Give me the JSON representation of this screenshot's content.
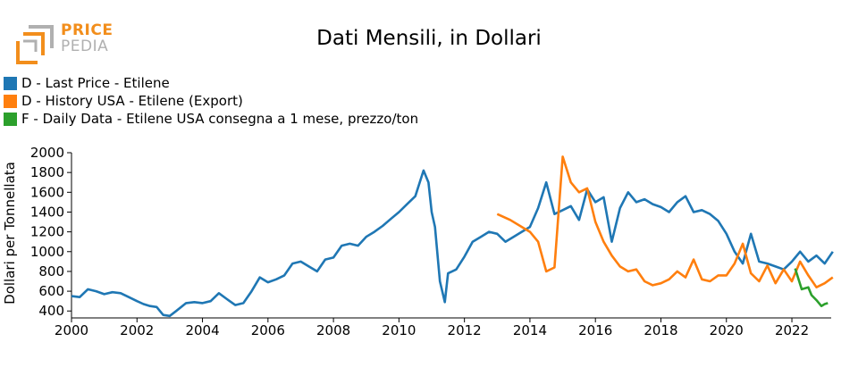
{
  "logo": {
    "line1": "PRICE",
    "line2": "PEDIA",
    "icon": "pricepedia-logo-icon"
  },
  "chart_data": {
    "type": "line",
    "title": "Dati Mensili, in Dollari",
    "xlabel": "",
    "ylabel": "Dollari per Tonnellata",
    "xlim": [
      2000,
      2023.2
    ],
    "ylim": [
      330,
      2000
    ],
    "x_ticks": [
      "2000",
      "2002",
      "2004",
      "2006",
      "2008",
      "2010",
      "2012",
      "2014",
      "2016",
      "2018",
      "2020",
      "2022"
    ],
    "y_ticks": [
      "400",
      "600",
      "800",
      "1000",
      "1200",
      "1400",
      "1600",
      "1800",
      "2000"
    ],
    "grid": false,
    "legend_position": "top-left",
    "series": [
      {
        "name": "D - Last Price - Etilene",
        "color": "#1f77b4",
        "points": [
          [
            2000.0,
            550
          ],
          [
            2000.25,
            540
          ],
          [
            2000.5,
            620
          ],
          [
            2000.75,
            600
          ],
          [
            2001.0,
            570
          ],
          [
            2001.25,
            590
          ],
          [
            2001.5,
            580
          ],
          [
            2001.75,
            540
          ],
          [
            2002.0,
            500
          ],
          [
            2002.2,
            470
          ],
          [
            2002.4,
            450
          ],
          [
            2002.6,
            440
          ],
          [
            2002.8,
            360
          ],
          [
            2003.0,
            350
          ],
          [
            2003.2,
            400
          ],
          [
            2003.5,
            480
          ],
          [
            2003.75,
            490
          ],
          [
            2004.0,
            480
          ],
          [
            2004.25,
            500
          ],
          [
            2004.5,
            580
          ],
          [
            2004.75,
            520
          ],
          [
            2005.0,
            460
          ],
          [
            2005.25,
            480
          ],
          [
            2005.5,
            600
          ],
          [
            2005.75,
            740
          ],
          [
            2006.0,
            690
          ],
          [
            2006.25,
            720
          ],
          [
            2006.5,
            760
          ],
          [
            2006.75,
            880
          ],
          [
            2007.0,
            900
          ],
          [
            2007.25,
            850
          ],
          [
            2007.5,
            800
          ],
          [
            2007.75,
            920
          ],
          [
            2008.0,
            940
          ],
          [
            2008.25,
            1060
          ],
          [
            2008.5,
            1080
          ],
          [
            2008.75,
            1060
          ],
          [
            2009.0,
            1150
          ],
          [
            2009.25,
            1200
          ],
          [
            2009.5,
            1260
          ],
          [
            2009.75,
            1330
          ],
          [
            2010.0,
            1400
          ],
          [
            2010.25,
            1480
          ],
          [
            2010.5,
            1560
          ],
          [
            2010.75,
            1820
          ],
          [
            2010.9,
            1700
          ],
          [
            2011.0,
            1400
          ],
          [
            2011.1,
            1250
          ],
          [
            2011.25,
            700
          ],
          [
            2011.4,
            490
          ],
          [
            2011.5,
            780
          ],
          [
            2011.75,
            820
          ],
          [
            2012.0,
            950
          ],
          [
            2012.25,
            1100
          ],
          [
            2012.5,
            1150
          ],
          [
            2012.75,
            1200
          ],
          [
            2013.0,
            1180
          ],
          [
            2013.25,
            1100
          ],
          [
            2013.5,
            1150
          ],
          [
            2013.75,
            1200
          ],
          [
            2014.0,
            1250
          ],
          [
            2014.25,
            1440
          ],
          [
            2014.5,
            1700
          ],
          [
            2014.75,
            1380
          ],
          [
            2015.0,
            1420
          ],
          [
            2015.25,
            1460
          ],
          [
            2015.5,
            1320
          ],
          [
            2015.75,
            1630
          ],
          [
            2016.0,
            1500
          ],
          [
            2016.25,
            1550
          ],
          [
            2016.5,
            1100
          ],
          [
            2016.75,
            1440
          ],
          [
            2017.0,
            1600
          ],
          [
            2017.25,
            1500
          ],
          [
            2017.5,
            1530
          ],
          [
            2017.75,
            1480
          ],
          [
            2018.0,
            1450
          ],
          [
            2018.25,
            1400
          ],
          [
            2018.5,
            1500
          ],
          [
            2018.75,
            1560
          ],
          [
            2019.0,
            1400
          ],
          [
            2019.25,
            1420
          ],
          [
            2019.5,
            1380
          ],
          [
            2019.75,
            1310
          ],
          [
            2020.0,
            1180
          ],
          [
            2020.25,
            1000
          ],
          [
            2020.5,
            880
          ],
          [
            2020.75,
            1180
          ],
          [
            2021.0,
            900
          ],
          [
            2021.25,
            880
          ],
          [
            2021.5,
            850
          ],
          [
            2021.75,
            820
          ],
          [
            2022.0,
            900
          ],
          [
            2022.25,
            1000
          ],
          [
            2022.5,
            900
          ],
          [
            2022.75,
            960
          ],
          [
            2023.0,
            880
          ],
          [
            2023.25,
            1000
          ]
        ]
      },
      {
        "name": "D - History USA - Etilene (Export)",
        "color": "#ff7f0e",
        "points": [
          [
            2013.0,
            1380
          ],
          [
            2013.4,
            1320
          ],
          [
            2013.75,
            1250
          ],
          [
            2014.0,
            1200
          ],
          [
            2014.25,
            1100
          ],
          [
            2014.5,
            800
          ],
          [
            2014.75,
            840
          ],
          [
            2015.0,
            1960
          ],
          [
            2015.25,
            1700
          ],
          [
            2015.5,
            1600
          ],
          [
            2015.75,
            1640
          ],
          [
            2016.0,
            1300
          ],
          [
            2016.25,
            1100
          ],
          [
            2016.5,
            960
          ],
          [
            2016.75,
            850
          ],
          [
            2017.0,
            800
          ],
          [
            2017.25,
            820
          ],
          [
            2017.5,
            700
          ],
          [
            2017.75,
            660
          ],
          [
            2018.0,
            680
          ],
          [
            2018.25,
            720
          ],
          [
            2018.5,
            800
          ],
          [
            2018.75,
            740
          ],
          [
            2019.0,
            920
          ],
          [
            2019.25,
            720
          ],
          [
            2019.5,
            700
          ],
          [
            2019.75,
            760
          ],
          [
            2020.0,
            760
          ],
          [
            2020.25,
            880
          ],
          [
            2020.5,
            1080
          ],
          [
            2020.75,
            780
          ],
          [
            2021.0,
            700
          ],
          [
            2021.25,
            860
          ],
          [
            2021.5,
            680
          ],
          [
            2021.75,
            820
          ],
          [
            2022.0,
            700
          ],
          [
            2022.25,
            900
          ],
          [
            2022.5,
            760
          ],
          [
            2022.75,
            640
          ],
          [
            2023.0,
            680
          ],
          [
            2023.25,
            740
          ]
        ]
      },
      {
        "name": "F - Daily Data - Etilene USA consegna a 1 mese, prezzo/ton",
        "color": "#2ca02c",
        "points": [
          [
            2022.1,
            830
          ],
          [
            2022.3,
            620
          ],
          [
            2022.5,
            640
          ],
          [
            2022.6,
            560
          ],
          [
            2022.75,
            510
          ],
          [
            2022.9,
            450
          ],
          [
            2023.0,
            470
          ],
          [
            2023.1,
            480
          ]
        ]
      }
    ]
  }
}
